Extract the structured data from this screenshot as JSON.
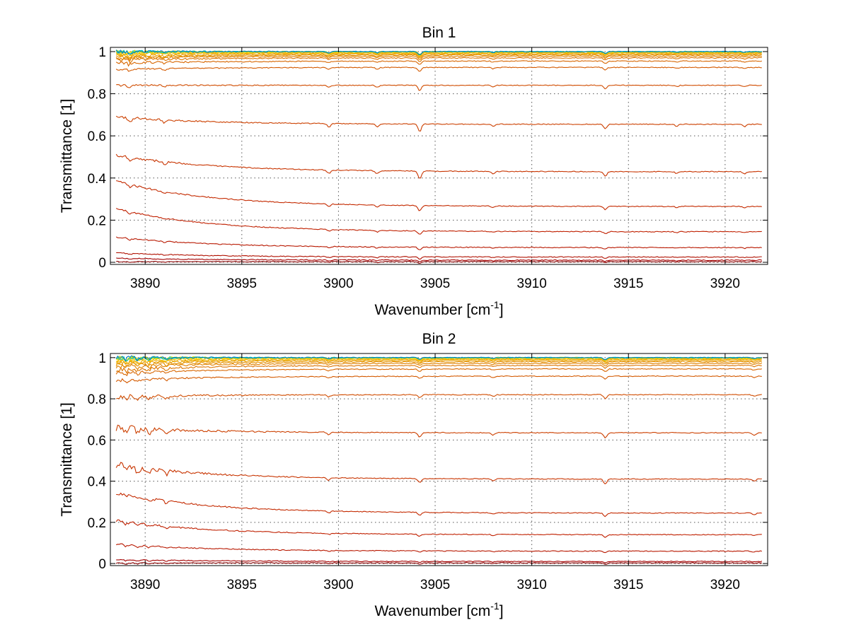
{
  "chart_data": [
    {
      "type": "line",
      "title": "Bin 1",
      "xlabel": "Wavenumber [cm",
      "xlabel_sup": "-1",
      "xlabel_close": "]",
      "ylabel": "Transmittance [1]",
      "xlim": [
        3888.2,
        3922.2
      ],
      "ylim": [
        -0.01,
        1.02
      ],
      "xticks": [
        3890,
        3895,
        3900,
        3905,
        3910,
        3915,
        3920
      ],
      "xtick_labels": [
        "3890",
        "3895",
        "3900",
        "3905",
        "3910",
        "3915",
        "3920"
      ],
      "yticks": [
        0,
        0.2,
        0.4,
        0.6,
        0.8,
        1
      ],
      "ytick_labels": [
        "0",
        "0.2",
        "0.4",
        "0.6",
        "0.8",
        "1"
      ],
      "grid": true,
      "x_start": 3888.5,
      "x_end": 3921.9,
      "series": [
        {
          "baseline": 0.003,
          "start_boost": 0.0,
          "color": "#8b0000"
        },
        {
          "baseline": 0.01,
          "start_boost": 0.01,
          "color": "#a30000"
        },
        {
          "baseline": 0.025,
          "start_boost": 0.02,
          "color": "#b01000"
        },
        {
          "baseline": 0.07,
          "start_boost": 0.05,
          "color": "#b81800"
        },
        {
          "baseline": 0.145,
          "start_boost": 0.11,
          "color": "#c02000"
        },
        {
          "baseline": 0.265,
          "start_boost": 0.12,
          "color": "#c42a00"
        },
        {
          "baseline": 0.43,
          "start_boost": 0.08,
          "color": "#c83400"
        },
        {
          "baseline": 0.655,
          "start_boost": 0.035,
          "color": "#cc4000"
        },
        {
          "baseline": 0.84,
          "start_boost": 0.0,
          "color": "#d04c00"
        },
        {
          "baseline": 0.925,
          "start_boost": -0.01,
          "color": "#d45a00"
        },
        {
          "baseline": 0.955,
          "start_boost": -0.01,
          "color": "#d86600"
        },
        {
          "baseline": 0.97,
          "start_boost": -0.01,
          "color": "#dc7400"
        },
        {
          "baseline": 0.978,
          "start_boost": -0.01,
          "color": "#e08200"
        },
        {
          "baseline": 0.984,
          "start_boost": -0.01,
          "color": "#e49000"
        },
        {
          "baseline": 0.989,
          "start_boost": -0.01,
          "color": "#e89e00"
        },
        {
          "baseline": 0.993,
          "start_boost": -0.005,
          "color": "#ecae00"
        },
        {
          "baseline": 0.996,
          "start_boost": -0.005,
          "color": "#f0bc00"
        },
        {
          "baseline": 0.998,
          "start_boost": 0.0,
          "color": "#f4cc00"
        },
        {
          "baseline": 0.999,
          "start_boost": 0.0,
          "color": "#f0dc00"
        },
        {
          "baseline": 1.0,
          "start_boost": 0.0,
          "color": "#c8e000"
        },
        {
          "baseline": 1.0,
          "start_boost": 0.0,
          "color": "#00c8c8"
        },
        {
          "baseline": 1.0,
          "start_boost": 0.0,
          "color": "#0080c0"
        }
      ],
      "absorption_lines": [
        3889.2,
        3891.0,
        3899.5,
        3902.0,
        3904.2,
        3908.0,
        3913.8,
        3917.5,
        3921.0
      ],
      "absorption_depths": [
        0.5,
        0.35,
        0.45,
        0.4,
        1.0,
        0.3,
        0.6,
        0.25,
        0.3
      ]
    },
    {
      "type": "line",
      "title": "Bin 2",
      "xlabel": "Wavenumber [cm",
      "xlabel_sup": "-1",
      "xlabel_close": "]",
      "ylabel": "Transmittance [1]",
      "xlim": [
        3888.2,
        3922.2
      ],
      "ylim": [
        -0.01,
        1.02
      ],
      "xticks": [
        3890,
        3895,
        3900,
        3905,
        3910,
        3915,
        3920
      ],
      "xtick_labels": [
        "3890",
        "3895",
        "3900",
        "3905",
        "3910",
        "3915",
        "3920"
      ],
      "yticks": [
        0,
        0.2,
        0.4,
        0.6,
        0.8,
        1
      ],
      "ytick_labels": [
        "0",
        "0.2",
        "0.4",
        "0.6",
        "0.8",
        "1"
      ],
      "grid": true,
      "x_start": 3888.5,
      "x_end": 3921.9,
      "series": [
        {
          "baseline": 0.003,
          "start_boost": 0.0,
          "color": "#8b0000"
        },
        {
          "baseline": 0.01,
          "start_boost": 0.01,
          "color": "#a30000"
        },
        {
          "baseline": 0.06,
          "start_boost": 0.035,
          "color": "#b81800"
        },
        {
          "baseline": 0.14,
          "start_boost": 0.07,
          "color": "#c02000"
        },
        {
          "baseline": 0.245,
          "start_boost": 0.1,
          "color": "#c42a00"
        },
        {
          "baseline": 0.41,
          "start_boost": 0.07,
          "color": "#c83400"
        },
        {
          "baseline": 0.635,
          "start_boost": 0.025,
          "color": "#cc4000"
        },
        {
          "baseline": 0.82,
          "start_boost": -0.01,
          "color": "#d04c00"
        },
        {
          "baseline": 0.91,
          "start_boost": -0.02,
          "color": "#d45a00"
        },
        {
          "baseline": 0.945,
          "start_boost": -0.02,
          "color": "#d86600"
        },
        {
          "baseline": 0.962,
          "start_boost": -0.02,
          "color": "#dc7400"
        },
        {
          "baseline": 0.972,
          "start_boost": -0.015,
          "color": "#e08200"
        },
        {
          "baseline": 0.98,
          "start_boost": -0.015,
          "color": "#e49000"
        },
        {
          "baseline": 0.986,
          "start_boost": -0.01,
          "color": "#e89e00"
        },
        {
          "baseline": 0.991,
          "start_boost": -0.01,
          "color": "#ecae00"
        },
        {
          "baseline": 0.995,
          "start_boost": -0.005,
          "color": "#f0bc00"
        },
        {
          "baseline": 0.997,
          "start_boost": 0.0,
          "color": "#f4cc00"
        },
        {
          "baseline": 0.999,
          "start_boost": 0.0,
          "color": "#f0dc00"
        },
        {
          "baseline": 1.0,
          "start_boost": 0.0,
          "color": "#c8e000"
        },
        {
          "baseline": 1.0,
          "start_boost": 0.0,
          "color": "#00c8c8"
        },
        {
          "baseline": 1.0,
          "start_boost": 0.0,
          "color": "#0080c0"
        }
      ],
      "absorption_lines": [
        3889.0,
        3889.6,
        3890.2,
        3891.1,
        3899.5,
        3904.2,
        3908.0,
        3913.8,
        3921.5
      ],
      "absorption_depths": [
        0.6,
        0.6,
        0.5,
        0.5,
        0.35,
        0.55,
        0.3,
        0.7,
        0.3
      ]
    }
  ]
}
